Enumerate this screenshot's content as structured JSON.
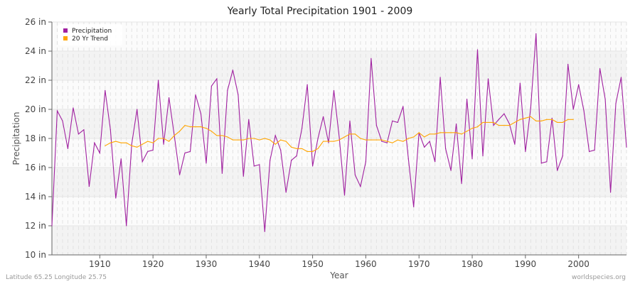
{
  "chart_data": {
    "type": "line",
    "title": "Yearly Total Precipitation 1901 - 2009",
    "xlabel": "Year",
    "ylabel": "Precipitation",
    "xlim": [
      1901,
      2009
    ],
    "ylim": [
      10,
      26
    ],
    "x_ticks": [
      1910,
      1920,
      1930,
      1940,
      1950,
      1960,
      1970,
      1980,
      1990,
      2000
    ],
    "y_ticks": [
      10,
      12,
      14,
      16,
      18,
      20,
      22,
      24,
      26
    ],
    "y_tick_labels": [
      "10 in",
      "12 in",
      "14 in",
      "16 in",
      "18 in",
      "20 in",
      "22 in",
      "24 in",
      "26 in"
    ],
    "grid": true,
    "legend_position": "top-left",
    "series": [
      {
        "name": "Precipitation",
        "color": "#a020a0",
        "x_start": 1901,
        "values": [
          12.0,
          19.9,
          19.2,
          17.3,
          20.1,
          18.3,
          18.6,
          14.7,
          17.7,
          17.0,
          21.3,
          18.6,
          13.9,
          16.6,
          12.0,
          17.6,
          20.0,
          16.4,
          17.1,
          17.2,
          22.0,
          17.6,
          20.8,
          18.2,
          15.5,
          17.0,
          17.1,
          21.0,
          19.7,
          16.3,
          21.6,
          22.1,
          15.6,
          21.3,
          22.7,
          21.0,
          15.4,
          19.3,
          16.1,
          16.2,
          11.6,
          16.5,
          18.2,
          17.2,
          14.3,
          16.5,
          16.8,
          18.7,
          21.7,
          16.1,
          18.0,
          19.5,
          17.7,
          21.3,
          18.1,
          14.1,
          19.2,
          15.5,
          14.7,
          16.4,
          23.5,
          18.9,
          17.8,
          17.7,
          19.2,
          19.1,
          20.2,
          16.6,
          13.3,
          18.4,
          17.4,
          17.8,
          16.4,
          22.2,
          17.3,
          15.8,
          19.0,
          14.9,
          20.7,
          16.6,
          24.1,
          16.8,
          22.1,
          18.9,
          19.3,
          19.7,
          19.0,
          17.6,
          21.8,
          17.1,
          20.1,
          25.2,
          16.3,
          16.4,
          19.4,
          15.8,
          16.8,
          23.1,
          20.0,
          21.7,
          19.9,
          17.1,
          17.2,
          22.8,
          20.7,
          14.3,
          20.4,
          22.2,
          17.4
        ]
      },
      {
        "name": "20 Yr Trend",
        "color": "#ffa500",
        "x_start": 1911,
        "values": [
          17.5,
          17.7,
          17.8,
          17.7,
          17.7,
          17.5,
          17.4,
          17.6,
          17.8,
          17.7,
          18.0,
          18.0,
          17.8,
          18.2,
          18.5,
          18.9,
          18.8,
          18.8,
          18.8,
          18.7,
          18.5,
          18.2,
          18.2,
          18.1,
          17.9,
          17.9,
          17.9,
          18.0,
          18.0,
          17.9,
          18.0,
          17.9,
          17.6,
          17.9,
          17.8,
          17.4,
          17.3,
          17.3,
          17.1,
          17.1,
          17.3,
          17.8,
          17.8,
          17.8,
          17.9,
          18.1,
          18.3,
          18.3,
          18.0,
          17.9,
          17.9,
          17.9,
          17.9,
          17.8,
          17.7,
          17.9,
          17.8,
          18.0,
          18.1,
          18.4,
          18.1,
          18.3,
          18.3,
          18.4,
          18.4,
          18.4,
          18.4,
          18.3,
          18.5,
          18.7,
          18.8,
          19.1,
          19.1,
          19.1,
          18.9,
          18.9,
          18.9,
          19.1,
          19.3,
          19.4,
          19.5,
          19.2,
          19.2,
          19.3,
          19.3,
          19.1,
          19.1,
          19.3,
          19.3
        ]
      }
    ]
  },
  "footer": {
    "location": "Latitude 65.25 Longitude 25.75",
    "source": "worldspecies.org"
  }
}
